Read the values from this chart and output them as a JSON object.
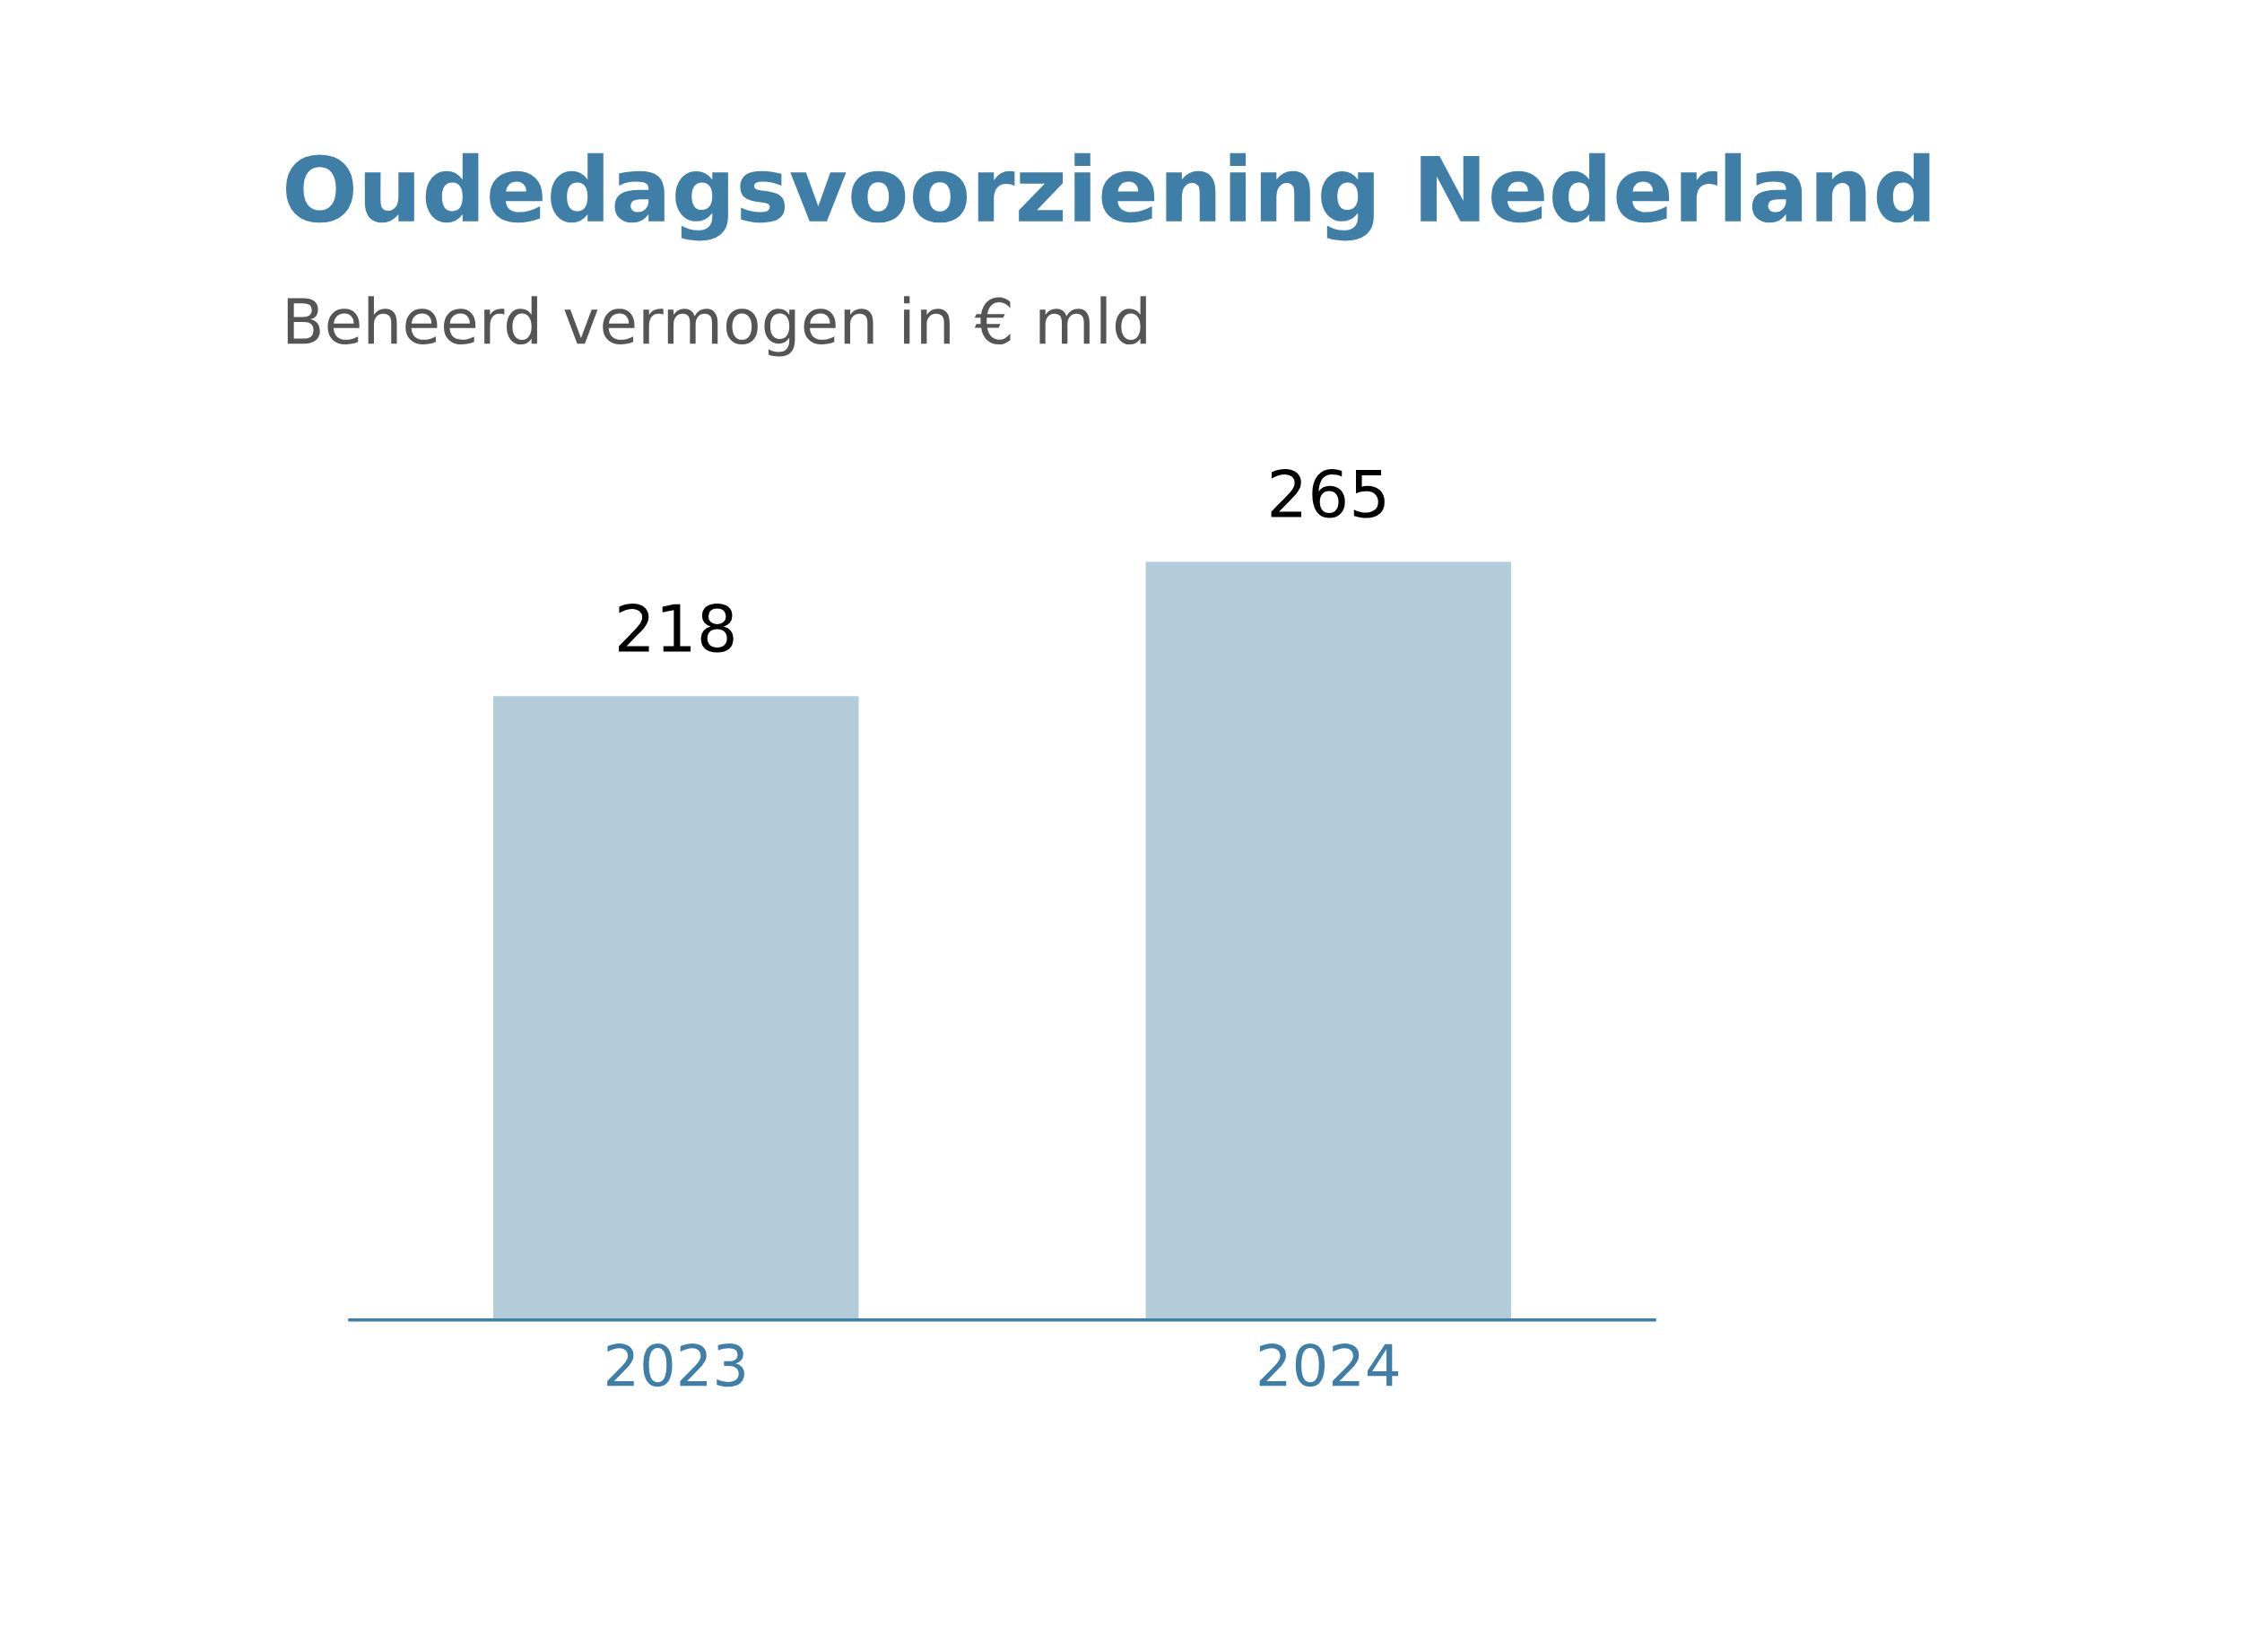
{
  "chart_data": {
    "type": "bar",
    "title": "Oudedagsvoorziening Nederland",
    "subtitle": "Beheerd vermogen in € mld",
    "categories": [
      "2023",
      "2024"
    ],
    "values": [
      218,
      265
    ],
    "color": "#b4ccd9",
    "data_labels": true,
    "tick_labels": "x",
    "grid": false,
    "legend": false
  }
}
